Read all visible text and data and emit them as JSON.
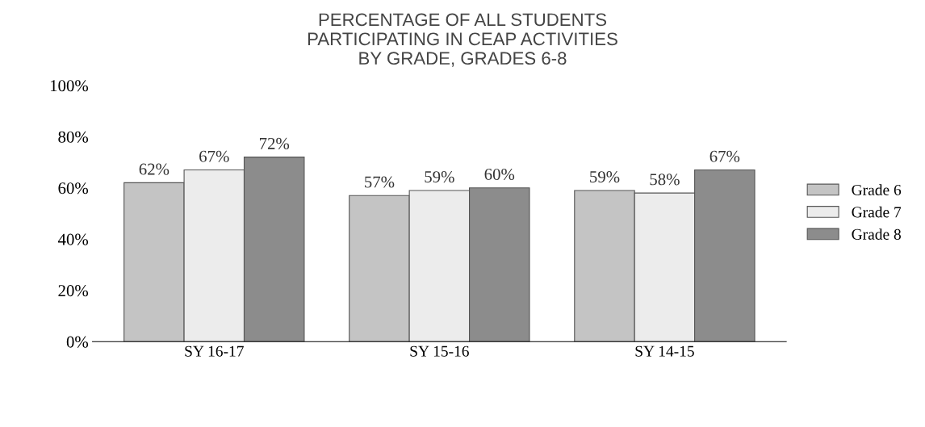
{
  "chart_data": {
    "type": "bar",
    "title": "PERCENTAGE OF ALL STUDENTS\nPARTICIPATING IN CEAP ACTIVITIES\nBY GRADE, GRADES 6-8",
    "categories": [
      "SY 16-17",
      "SY 15-16",
      "SY 14-15"
    ],
    "series": [
      {
        "name": "Grade 6",
        "color": "#c4c4c4",
        "values": [
          62,
          57,
          59
        ],
        "value_labels": [
          "62%",
          "57%",
          "59%"
        ]
      },
      {
        "name": "Grade 7",
        "color": "#ececec",
        "values": [
          67,
          59,
          58
        ],
        "value_labels": [
          "67%",
          "59%",
          "58%"
        ]
      },
      {
        "name": "Grade 8",
        "color": "#8c8c8c",
        "values": [
          72,
          60,
          67
        ],
        "value_labels": [
          "72%",
          "60%",
          "67%"
        ]
      }
    ],
    "ylim": [
      0,
      100
    ],
    "yticks": [
      {
        "value": 0,
        "label": "0%"
      },
      {
        "value": 20,
        "label": "20%"
      },
      {
        "value": 40,
        "label": "40%"
      },
      {
        "value": 60,
        "label": "60%"
      },
      {
        "value": 80,
        "label": "80%"
      },
      {
        "value": 100,
        "label": "100%"
      }
    ],
    "legend": "right",
    "grid": false
  }
}
